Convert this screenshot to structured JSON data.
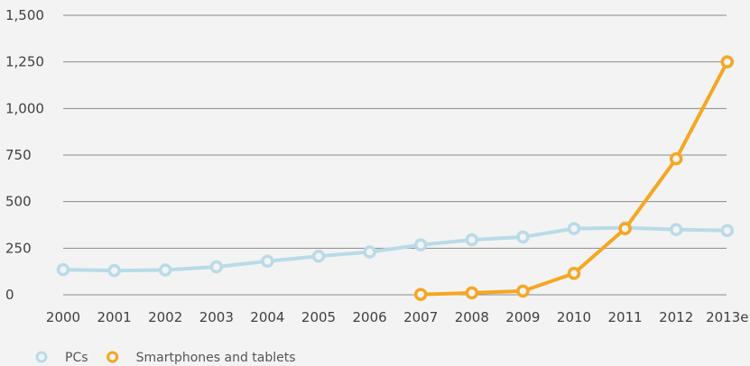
{
  "chart_data": {
    "type": "line",
    "title": "",
    "xlabel": "",
    "ylabel": "",
    "categories": [
      "2000",
      "2001",
      "2002",
      "2003",
      "2004",
      "2005",
      "2006",
      "2007",
      "2008",
      "2009",
      "2010",
      "2011",
      "2012",
      "2013e"
    ],
    "ylim": [
      0,
      1500
    ],
    "yticks": [
      0,
      250,
      500,
      750,
      1000,
      1250,
      1500
    ],
    "ytick_labels": [
      "0",
      "250",
      "500",
      "750",
      "1,000",
      "1,250",
      "1,500"
    ],
    "grid": true,
    "legend_position": "bottom-left",
    "series": [
      {
        "name": "PCs",
        "color": "#b9dbe8",
        "marker": "open-circle",
        "values": [
          135,
          130,
          133,
          150,
          180,
          207,
          230,
          268,
          295,
          310,
          355,
          360,
          350,
          345
        ]
      },
      {
        "name": "Smartphones and tablets",
        "color": "#f5a623",
        "marker": "open-circle",
        "values": [
          null,
          null,
          null,
          null,
          null,
          null,
          null,
          2,
          10,
          20,
          115,
          355,
          730,
          1250
        ]
      }
    ]
  }
}
